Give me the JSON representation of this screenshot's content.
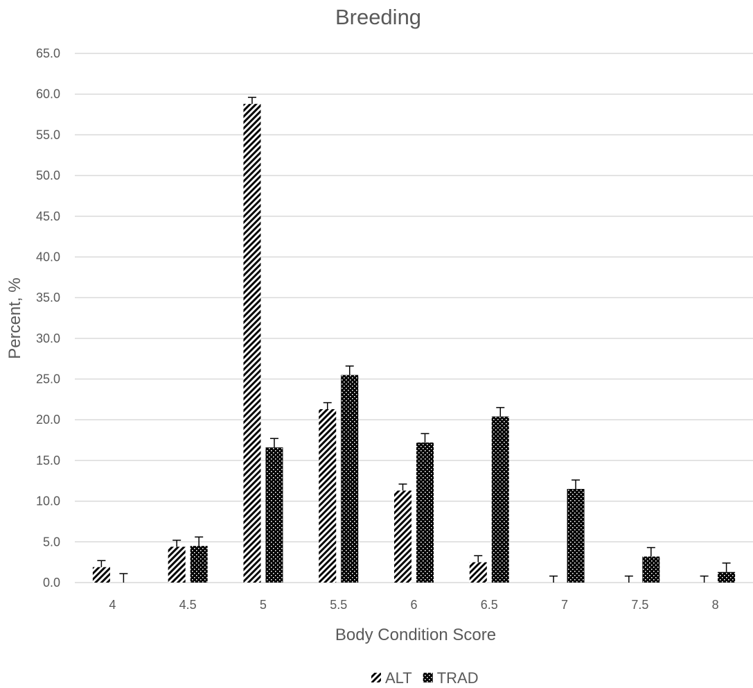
{
  "chart_data": {
    "type": "bar",
    "title": "Breeding",
    "xlabel": "Body Condition Score",
    "ylabel": "Percent, %",
    "categories": [
      "4",
      "4.5",
      "5",
      "5.5",
      "6",
      "6.5",
      "7",
      "7.5",
      "8"
    ],
    "ylim": [
      0,
      65
    ],
    "yticks": [
      "0.0",
      "5.0",
      "10.0",
      "15.0",
      "20.0",
      "25.0",
      "30.0",
      "35.0",
      "40.0",
      "45.0",
      "50.0",
      "55.0",
      "60.0",
      "65.0"
    ],
    "grid": true,
    "legend_position": "bottom",
    "series": [
      {
        "name": "ALT",
        "pattern": "diagonal-hatch",
        "color": "#000000",
        "values": [
          1.9,
          4.4,
          58.8,
          21.3,
          11.3,
          2.5,
          0.0,
          0.0,
          0.0
        ],
        "error": [
          0.8,
          0.8,
          0.8,
          0.8,
          0.8,
          0.8,
          0.8,
          0.8,
          0.8
        ]
      },
      {
        "name": "TRAD",
        "pattern": "dotted-black",
        "color": "#000000",
        "values": [
          0.0,
          4.5,
          16.6,
          25.5,
          17.2,
          20.4,
          11.5,
          3.2,
          1.3
        ],
        "error": [
          1.1,
          1.1,
          1.1,
          1.1,
          1.1,
          1.1,
          1.1,
          1.1,
          1.1
        ]
      }
    ]
  }
}
